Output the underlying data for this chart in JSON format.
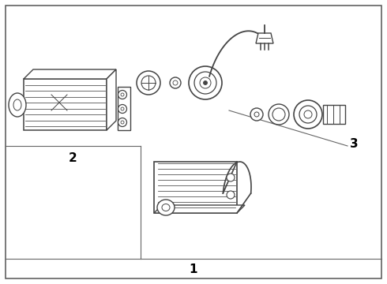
{
  "background_color": "#ffffff",
  "line_color": "#444444",
  "label_1": "1",
  "label_2": "2",
  "label_3": "3",
  "border_lw": 1.0,
  "divider_color": "#666666"
}
